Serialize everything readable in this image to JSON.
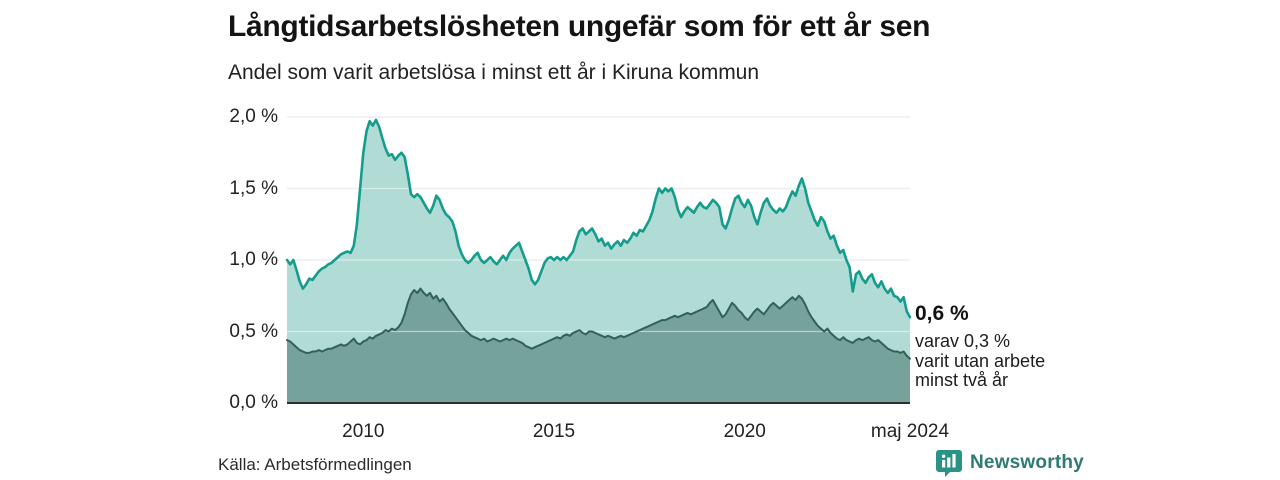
{
  "header": {
    "title": "Långtidsarbetslösheten ungefär som för ett år sen",
    "subtitle": "Andel som varit arbetslösa i minst ett år i Kiruna kommun"
  },
  "chart_data": {
    "type": "area",
    "title": "Långtidsarbetslösheten ungefär som för ett år sen",
    "subtitle": "Andel som varit arbetslösa i minst ett år i Kiruna kommun",
    "unit": "%",
    "frequency": "monthly",
    "x_start": "2008-01",
    "x_end": "maj 2024",
    "ylim": [
      0,
      2.0
    ],
    "grid": "horizontal",
    "y_ticks": [
      {
        "label": "0,0 %",
        "value": 0.0
      },
      {
        "label": "0,5 %",
        "value": 0.5
      },
      {
        "label": "1,0 %",
        "value": 1.0
      },
      {
        "label": "1,5 %",
        "value": 1.5
      },
      {
        "label": "2,0 %",
        "value": 2.0
      }
    ],
    "x_ticks": [
      {
        "label": "2010",
        "month_index": 24
      },
      {
        "label": "2015",
        "month_index": 84
      },
      {
        "label": "2020",
        "month_index": 144
      },
      {
        "label": "maj 2024",
        "month_index": 196
      }
    ],
    "series": [
      {
        "name": "minst ett år",
        "line_color": "#149c8c",
        "fill_color": "#b1dbd5",
        "line_width": 2.6,
        "end_value": 0.6,
        "values": [
          1.0,
          0.97,
          1.0,
          0.93,
          0.85,
          0.8,
          0.83,
          0.87,
          0.86,
          0.89,
          0.92,
          0.94,
          0.95,
          0.97,
          0.98,
          1.0,
          1.02,
          1.04,
          1.05,
          1.06,
          1.05,
          1.1,
          1.25,
          1.5,
          1.75,
          1.9,
          1.97,
          1.94,
          1.98,
          1.93,
          1.85,
          1.78,
          1.73,
          1.74,
          1.7,
          1.73,
          1.75,
          1.72,
          1.6,
          1.46,
          1.44,
          1.46,
          1.44,
          1.4,
          1.36,
          1.33,
          1.38,
          1.45,
          1.42,
          1.36,
          1.32,
          1.3,
          1.27,
          1.2,
          1.1,
          1.04,
          1.0,
          0.98,
          1.0,
          1.03,
          1.05,
          1.0,
          0.98,
          1.0,
          1.02,
          0.99,
          0.97,
          1.0,
          1.03,
          1.0,
          1.05,
          1.08,
          1.1,
          1.12,
          1.06,
          1.0,
          0.94,
          0.86,
          0.83,
          0.86,
          0.92,
          0.98,
          1.01,
          1.02,
          1.0,
          1.02,
          1.0,
          1.02,
          1.0,
          1.03,
          1.06,
          1.14,
          1.2,
          1.22,
          1.18,
          1.2,
          1.22,
          1.18,
          1.13,
          1.15,
          1.1,
          1.12,
          1.08,
          1.11,
          1.13,
          1.1,
          1.14,
          1.12,
          1.15,
          1.19,
          1.17,
          1.21,
          1.2,
          1.24,
          1.28,
          1.34,
          1.43,
          1.5,
          1.47,
          1.5,
          1.48,
          1.5,
          1.44,
          1.35,
          1.3,
          1.34,
          1.37,
          1.35,
          1.33,
          1.37,
          1.4,
          1.37,
          1.36,
          1.39,
          1.42,
          1.4,
          1.37,
          1.25,
          1.22,
          1.28,
          1.36,
          1.43,
          1.45,
          1.4,
          1.37,
          1.42,
          1.38,
          1.3,
          1.25,
          1.33,
          1.4,
          1.43,
          1.38,
          1.35,
          1.33,
          1.36,
          1.34,
          1.37,
          1.43,
          1.48,
          1.45,
          1.52,
          1.57,
          1.5,
          1.4,
          1.34,
          1.28,
          1.24,
          1.3,
          1.27,
          1.2,
          1.15,
          1.17,
          1.1,
          1.05,
          1.07,
          1.0,
          0.95,
          0.78,
          0.9,
          0.92,
          0.87,
          0.84,
          0.88,
          0.9,
          0.84,
          0.81,
          0.85,
          0.8,
          0.77,
          0.8,
          0.75,
          0.74,
          0.71,
          0.74,
          0.64,
          0.6
        ]
      },
      {
        "name": "minst två år",
        "line_color": "#30615a",
        "fill_color": "#75a29b",
        "line_width": 2,
        "end_value": 0.3,
        "values": [
          0.44,
          0.43,
          0.41,
          0.39,
          0.37,
          0.36,
          0.35,
          0.35,
          0.36,
          0.36,
          0.37,
          0.36,
          0.37,
          0.38,
          0.38,
          0.39,
          0.4,
          0.41,
          0.4,
          0.41,
          0.43,
          0.45,
          0.42,
          0.41,
          0.43,
          0.44,
          0.46,
          0.45,
          0.47,
          0.48,
          0.49,
          0.51,
          0.5,
          0.52,
          0.51,
          0.53,
          0.56,
          0.62,
          0.7,
          0.76,
          0.79,
          0.77,
          0.8,
          0.77,
          0.75,
          0.77,
          0.73,
          0.75,
          0.71,
          0.73,
          0.7,
          0.66,
          0.63,
          0.6,
          0.57,
          0.54,
          0.51,
          0.49,
          0.47,
          0.46,
          0.45,
          0.44,
          0.45,
          0.43,
          0.44,
          0.45,
          0.44,
          0.43,
          0.44,
          0.45,
          0.44,
          0.45,
          0.44,
          0.43,
          0.42,
          0.4,
          0.39,
          0.38,
          0.39,
          0.4,
          0.41,
          0.42,
          0.43,
          0.44,
          0.45,
          0.46,
          0.45,
          0.47,
          0.48,
          0.47,
          0.49,
          0.5,
          0.51,
          0.49,
          0.48,
          0.5,
          0.5,
          0.49,
          0.48,
          0.47,
          0.46,
          0.47,
          0.46,
          0.45,
          0.46,
          0.47,
          0.46,
          0.47,
          0.48,
          0.49,
          0.5,
          0.51,
          0.52,
          0.53,
          0.54,
          0.55,
          0.56,
          0.57,
          0.58,
          0.58,
          0.59,
          0.6,
          0.61,
          0.6,
          0.61,
          0.62,
          0.63,
          0.62,
          0.63,
          0.64,
          0.65,
          0.66,
          0.67,
          0.7,
          0.72,
          0.68,
          0.64,
          0.6,
          0.62,
          0.66,
          0.7,
          0.68,
          0.65,
          0.63,
          0.6,
          0.58,
          0.61,
          0.64,
          0.66,
          0.64,
          0.62,
          0.65,
          0.68,
          0.7,
          0.68,
          0.66,
          0.68,
          0.7,
          0.72,
          0.74,
          0.72,
          0.75,
          0.73,
          0.69,
          0.64,
          0.6,
          0.57,
          0.54,
          0.52,
          0.5,
          0.52,
          0.49,
          0.47,
          0.45,
          0.44,
          0.46,
          0.44,
          0.43,
          0.42,
          0.44,
          0.45,
          0.44,
          0.45,
          0.46,
          0.44,
          0.43,
          0.44,
          0.42,
          0.4,
          0.38,
          0.37,
          0.36,
          0.36,
          0.35,
          0.36,
          0.33,
          0.31
        ]
      }
    ],
    "annotation": {
      "value_label": "0,6 %",
      "note": "varav 0,3 %\nvarit utan arbete\nminst två år"
    },
    "colors": {
      "gridline": "#d9d9d9",
      "axis_line": "#2d2d2d",
      "accent_teal": "#149c8c",
      "dark_teal": "#30615a",
      "brand_teal": "#2f7a73",
      "brand_icon": "#2b9286"
    }
  },
  "footer": {
    "source": "Källa: Arbetsförmedlingen",
    "brand_name": "Newsworthy"
  }
}
